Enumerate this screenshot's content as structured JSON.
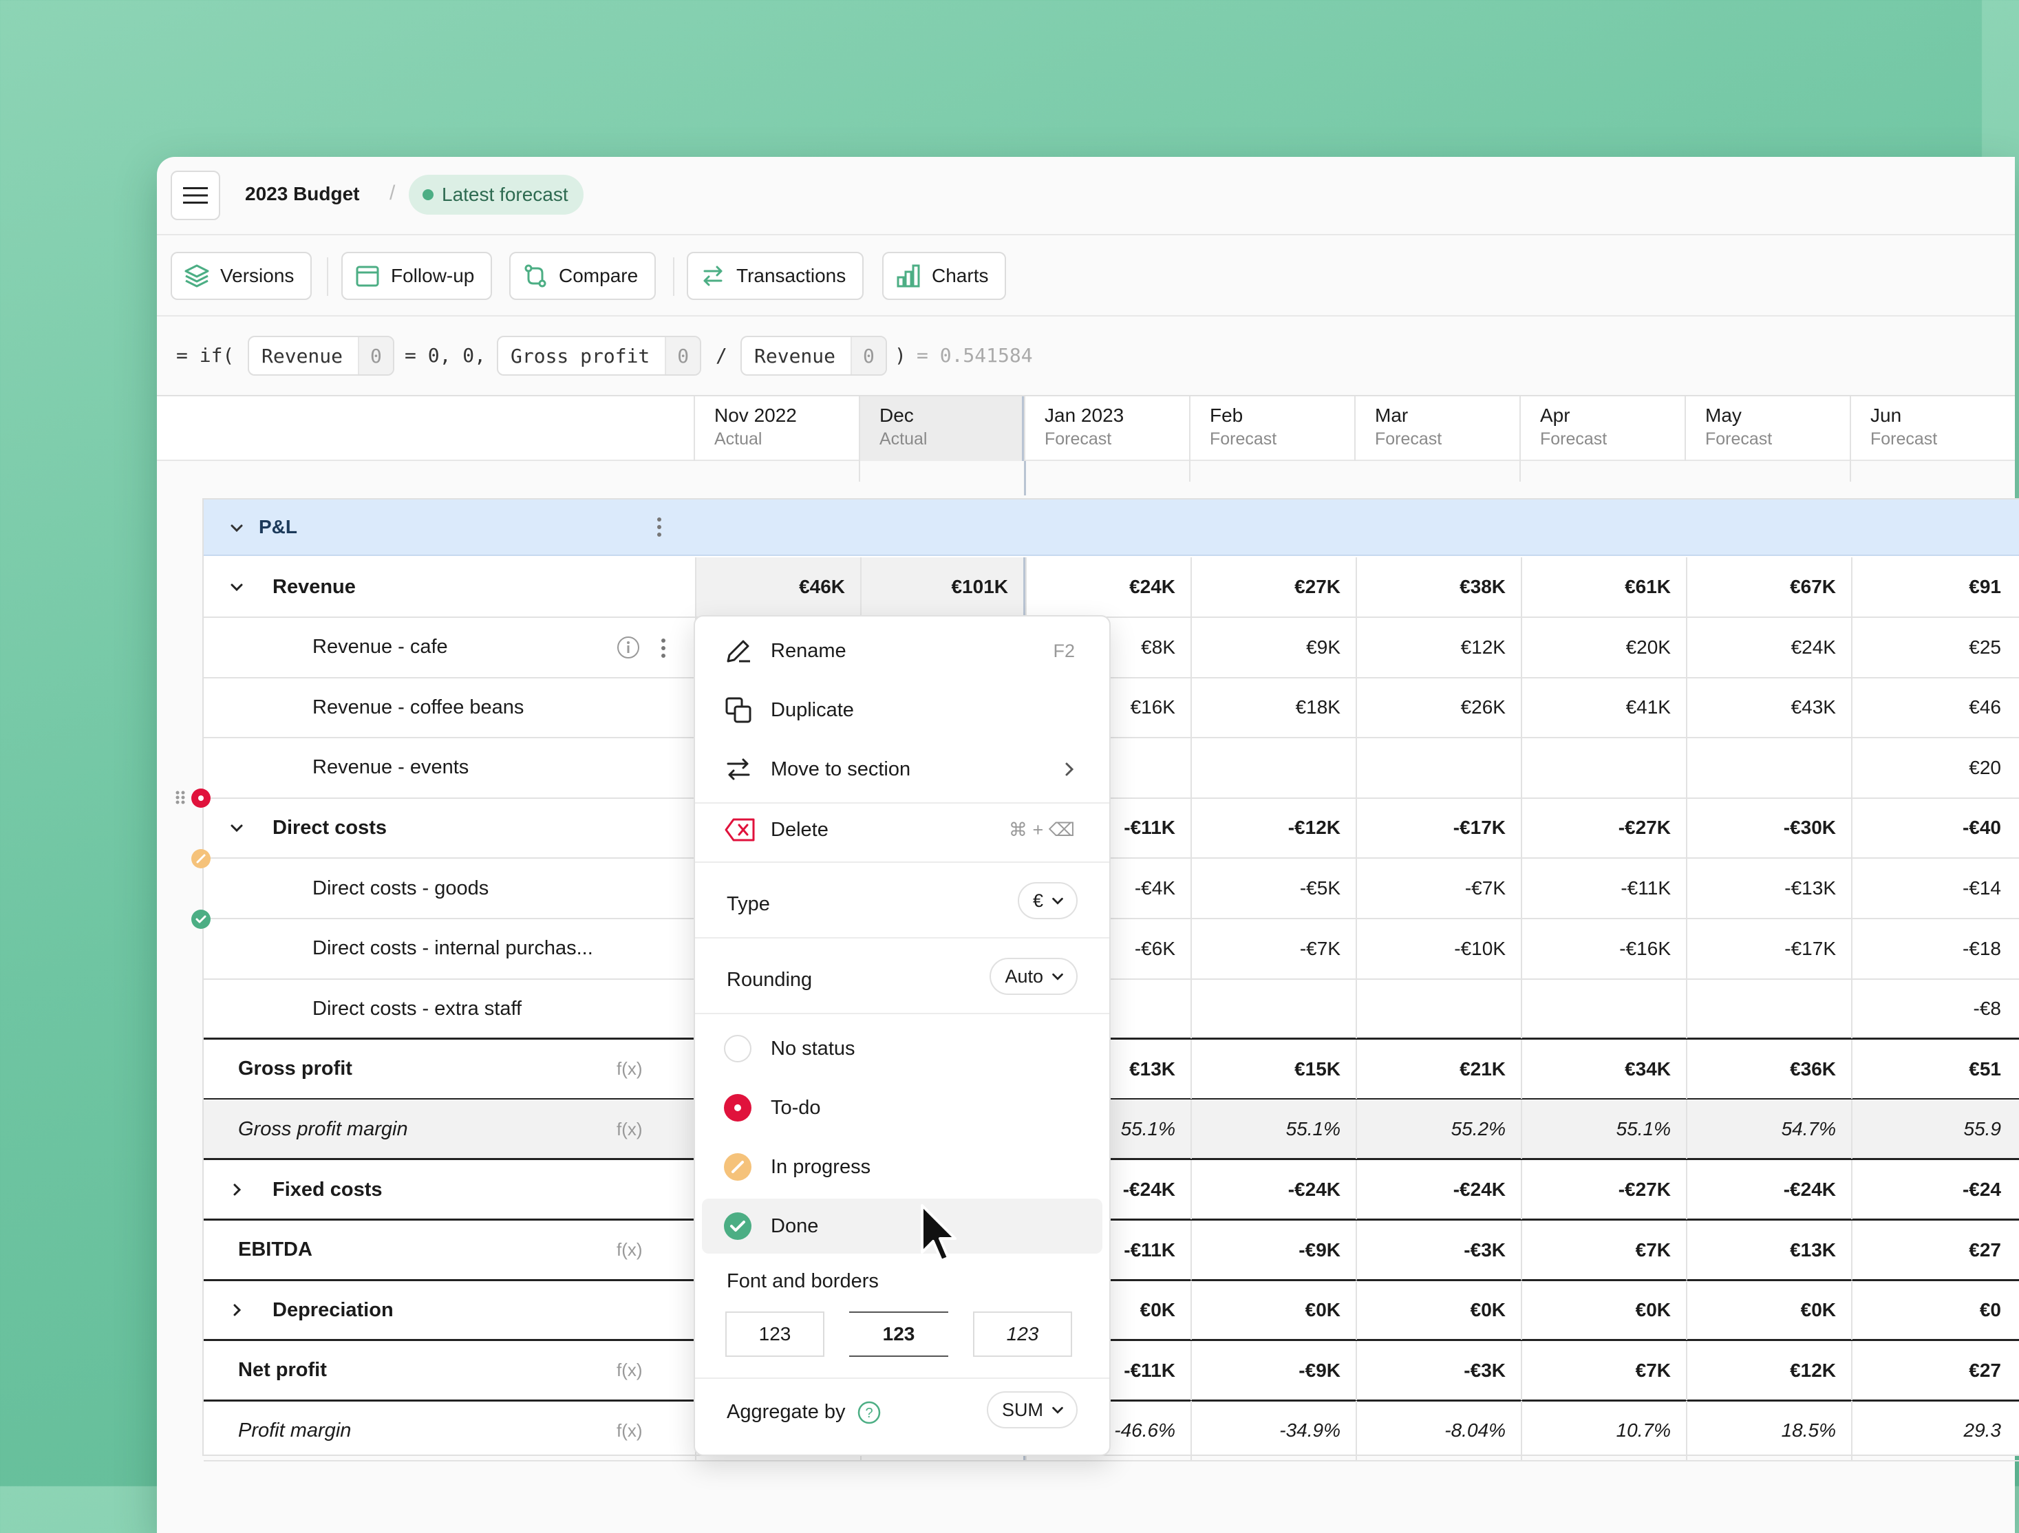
{
  "header": {
    "doc_title": "2023 Budget",
    "separator": "/",
    "version_badge": "Latest forecast"
  },
  "toolbar": {
    "versions": "Versions",
    "follow_up": "Follow-up",
    "compare": "Compare",
    "transactions": "Transactions",
    "charts": "Charts"
  },
  "formula": {
    "open": "= if(",
    "ref1_name": "Revenue",
    "ref1_val": "0",
    "mid1": "= 0, 0,",
    "ref2_name": "Gross profit",
    "ref2_val": "0",
    "div": "/",
    "ref3_name": "Revenue",
    "ref3_val": "0",
    "close": ")",
    "result": "= 0.541584"
  },
  "columns": [
    {
      "month": "Nov 2022",
      "kind": "Actual"
    },
    {
      "month": "Dec",
      "kind": "Actual"
    },
    {
      "month": "Jan 2023",
      "kind": "Forecast"
    },
    {
      "month": "Feb",
      "kind": "Forecast"
    },
    {
      "month": "Mar",
      "kind": "Forecast"
    },
    {
      "month": "Apr",
      "kind": "Forecast"
    },
    {
      "month": "May",
      "kind": "Forecast"
    },
    {
      "month": "Jun",
      "kind": "Forecast"
    }
  ],
  "section": {
    "name": "P&L"
  },
  "rows": [
    {
      "label": "Revenue",
      "values": [
        "€46K",
        "€101K",
        "€24K",
        "€27K",
        "€38K",
        "€61K",
        "€67K",
        "€91"
      ]
    },
    {
      "label": "Revenue - cafe",
      "values": [
        "",
        "",
        "€8K",
        "€9K",
        "€12K",
        "€20K",
        "€24K",
        "€25"
      ]
    },
    {
      "label": "Revenue - coffee beans",
      "values": [
        "",
        "",
        "€16K",
        "€18K",
        "€26K",
        "€41K",
        "€43K",
        "€46"
      ]
    },
    {
      "label": "Revenue - events",
      "values": [
        "",
        "",
        "",
        "",
        "",
        "",
        "",
        "€20"
      ]
    },
    {
      "label": "Direct costs",
      "values": [
        "",
        "",
        "-€11K",
        "-€12K",
        "-€17K",
        "-€27K",
        "-€30K",
        "-€40"
      ]
    },
    {
      "label": "Direct costs - goods",
      "values": [
        "",
        "",
        "-€4K",
        "-€5K",
        "-€7K",
        "-€11K",
        "-€13K",
        "-€14"
      ]
    },
    {
      "label": "Direct costs - internal purchas...",
      "values": [
        "",
        "",
        "-€6K",
        "-€7K",
        "-€10K",
        "-€16K",
        "-€17K",
        "-€18"
      ]
    },
    {
      "label": "Direct costs - extra staff",
      "values": [
        "",
        "",
        "",
        "",
        "",
        "",
        "",
        "-€8"
      ]
    },
    {
      "label": "Gross profit",
      "fx": "f(x)",
      "values": [
        "",
        "",
        "€13K",
        "€15K",
        "€21K",
        "€34K",
        "€36K",
        "€51"
      ]
    },
    {
      "label": "Gross profit margin",
      "fx": "f(x)",
      "values": [
        "",
        "",
        "55.1%",
        "55.1%",
        "55.2%",
        "55.1%",
        "54.7%",
        "55.9"
      ]
    },
    {
      "label": "Fixed costs",
      "values": [
        "",
        "",
        "-€24K",
        "-€24K",
        "-€24K",
        "-€27K",
        "-€24K",
        "-€24"
      ]
    },
    {
      "label": "EBITDA",
      "fx": "f(x)",
      "values": [
        "",
        "",
        "-€11K",
        "-€9K",
        "-€3K",
        "€7K",
        "€13K",
        "€27"
      ]
    },
    {
      "label": "Depreciation",
      "values": [
        "",
        "",
        "€0K",
        "€0K",
        "€0K",
        "€0K",
        "€0K",
        "€0"
      ]
    },
    {
      "label": "Net profit",
      "fx": "f(x)",
      "values": [
        "",
        "",
        "-€11K",
        "-€9K",
        "-€3K",
        "€7K",
        "€12K",
        "€27"
      ]
    },
    {
      "label": "Profit margin",
      "fx": "f(x)",
      "values": [
        "",
        "",
        "-46.6%",
        "-34.9%",
        "-8.04%",
        "10.7%",
        "18.5%",
        "29.3"
      ]
    }
  ],
  "context_menu": {
    "rename": "Rename",
    "rename_kb": "F2",
    "duplicate": "Duplicate",
    "move": "Move to section",
    "delete": "Delete",
    "delete_kb": "⌘ + ⌫",
    "type_label": "Type",
    "type_value": "€",
    "rounding_label": "Rounding",
    "rounding_value": "Auto",
    "status_none": "No status",
    "status_todo": "To-do",
    "status_progress": "In progress",
    "status_done": "Done",
    "font_label": "Font and borders",
    "font_regular": "123",
    "font_bold": "123",
    "font_italic": "123",
    "aggregate_label": "Aggregate by",
    "aggregate_value": "SUM"
  },
  "colors": {
    "accent": "#4cae84",
    "todo": "#e0123c",
    "progress": "#f5c27a",
    "section_bg": "#dbeafb"
  }
}
